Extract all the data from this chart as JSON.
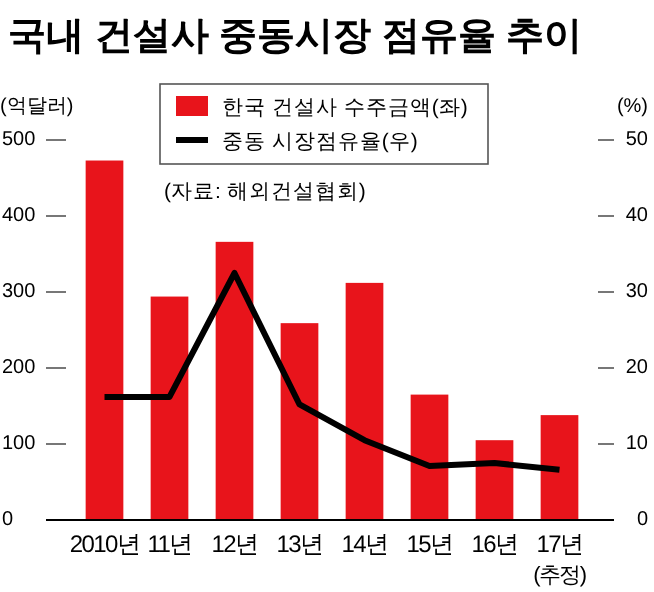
{
  "chart_data": {
    "type": "bar",
    "title": "국내 건설사 중동시장 점유율 추이",
    "categories": [
      "2010년",
      "11년",
      "12년",
      "13년",
      "14년",
      "15년",
      "16년",
      "17년\n(추정)"
    ],
    "series": [
      {
        "name": "한국 건설사 수주금액(좌)",
        "color": "#e8141b",
        "values": [
          473,
          294,
          366,
          259,
          312,
          165,
          105,
          138
        ]
      },
      {
        "name": "중동 시장점유율(우)",
        "type": "line",
        "axis": "y2",
        "color": "#000000",
        "values": [
          16.2,
          16.2,
          32.5,
          15.2,
          10.5,
          7.1,
          7.5,
          6.6
        ]
      }
    ],
    "ylabel": "(억달러)",
    "y2label": "(%)",
    "ylim": [
      0,
      500
    ],
    "yticks": [
      0,
      100,
      200,
      300,
      400,
      500
    ],
    "y2lim": [
      0,
      50
    ],
    "y2ticks": [
      0,
      10,
      20,
      30,
      40,
      50
    ],
    "annotations": [
      "(자료: 해외건설협회)"
    ],
    "legend": "top",
    "grid": false
  }
}
